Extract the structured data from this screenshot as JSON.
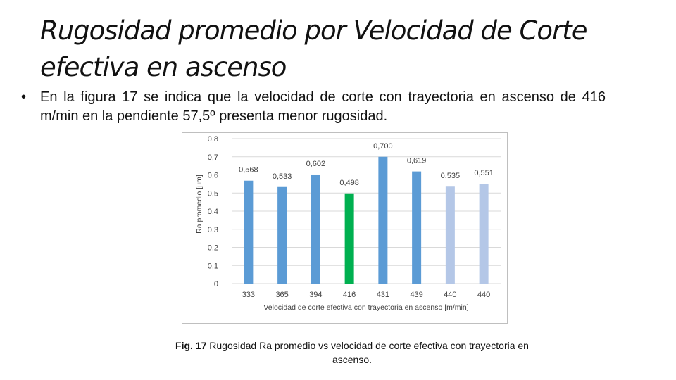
{
  "slide": {
    "title": "Rugosidad promedio por Velocidad de Corte efectiva en ascenso",
    "bullet_marker": "•",
    "bullet_text": "En la figura 17 se indica que la velocidad de corte con trayectoria en ascenso de 416 m/min en la pendiente 57,5º presenta menor rugosidad.",
    "caption_bold": "Fig. 17",
    "caption_text": "Rugosidad Ra promedio vs velocidad de corte efectiva con trayectoria en ascenso."
  },
  "chart_data": {
    "type": "bar",
    "title": "",
    "xlabel": "Velocidad de corte efectiva con trayectoria en ascenso [m/min]",
    "ylabel": "Ra promedio [µm]",
    "ylim": [
      0,
      0.8
    ],
    "yticks": [
      "0",
      "0,1",
      "0,2",
      "0,3",
      "0,4",
      "0,5",
      "0,6",
      "0,7",
      "0,8"
    ],
    "grid": true,
    "categories": [
      "333",
      "365",
      "394",
      "416",
      "431",
      "439",
      "440",
      "440"
    ],
    "values": [
      0.568,
      0.533,
      0.602,
      0.498,
      0.7,
      0.619,
      0.535,
      0.551
    ],
    "value_labels": [
      "0,568",
      "0,533",
      "0,602",
      "0,498",
      "0,700",
      "0,619",
      "0,535",
      "0,551"
    ],
    "bar_colors": [
      "#5b9bd5",
      "#5b9bd5",
      "#5b9bd5",
      "#00b050",
      "#5b9bd5",
      "#5b9bd5",
      "#b4c7e7",
      "#b4c7e7"
    ]
  }
}
